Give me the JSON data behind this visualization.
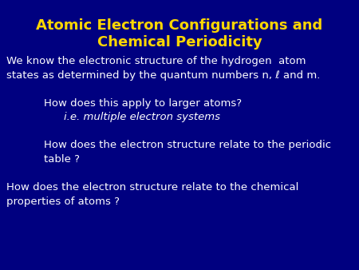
{
  "background_color": "#000080",
  "title_line1": "Atomic Electron Configurations and",
  "title_line2": "Chemical Periodicity",
  "title_color": "#FFD700",
  "title_fontsize": 13,
  "body_color": "#FFFFFF",
  "body_fontsize": 9.5,
  "intro_text": "We know the electronic structure of the hydrogen  atom\nstates as determined by the quantum numbers n, ℓ and m.",
  "bullet1_line1": "How does this apply to larger atoms?",
  "bullet1_line2": "i.e. multiple electron systems",
  "bullet2": "How does the electron structure relate to the periodic\ntable ?",
  "bullet3": "How does the electron structure relate to the chemical\nproperties of atoms ?"
}
